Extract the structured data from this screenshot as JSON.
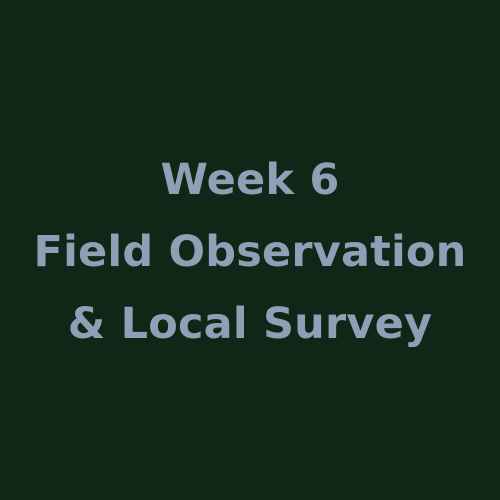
{
  "card": {
    "background_color": "#0e2716",
    "text_color": "#8f9fb6",
    "title_lines": [
      "Week 6",
      "Field Observation",
      "& Local Survey"
    ]
  }
}
